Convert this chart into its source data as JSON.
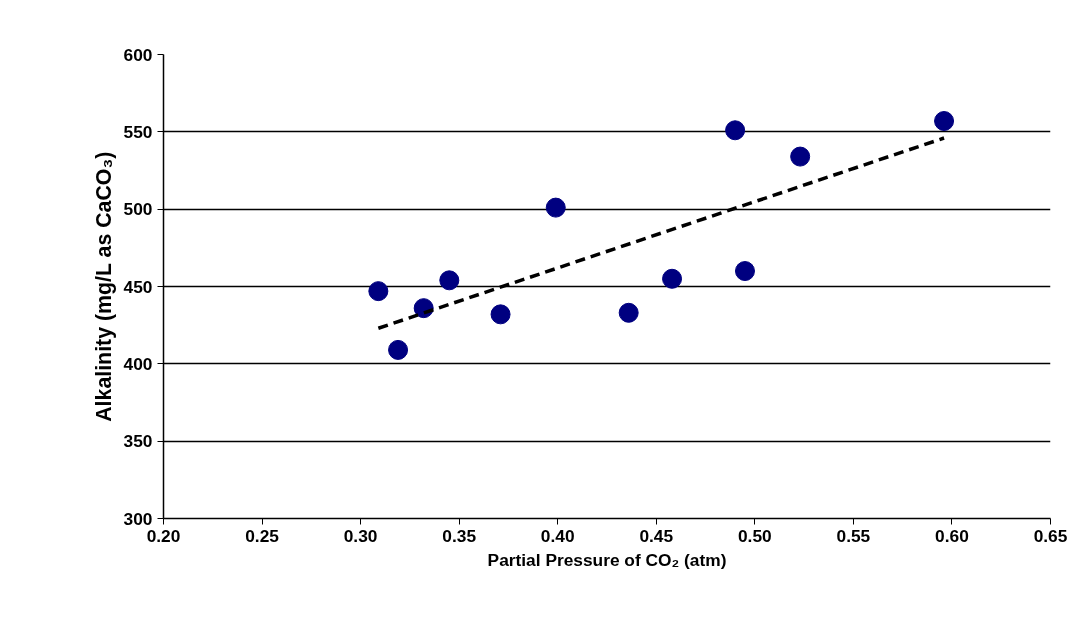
{
  "chart_data": {
    "type": "scatter",
    "xlabel": "Partial Pressure of CO₂ (atm)",
    "ylabel": "Alkalinity (mg/L as CaCO₃)",
    "xlim": [
      0.2,
      0.65
    ],
    "ylim": [
      300,
      600
    ],
    "xticks": [
      {
        "value": 0.2,
        "label": "0.20"
      },
      {
        "value": 0.25,
        "label": "0.25"
      },
      {
        "value": 0.3,
        "label": "0.30"
      },
      {
        "value": 0.35,
        "label": "0.35"
      },
      {
        "value": 0.4,
        "label": "0.40"
      },
      {
        "value": 0.45,
        "label": "0.45"
      },
      {
        "value": 0.5,
        "label": "0.50"
      },
      {
        "value": 0.55,
        "label": "0.55"
      },
      {
        "value": 0.6,
        "label": "0.60"
      },
      {
        "value": 0.65,
        "label": "0.65"
      }
    ],
    "yticks": [
      300,
      350,
      400,
      450,
      500,
      550,
      600
    ],
    "grid": "y",
    "series": [
      {
        "color": "#000080",
        "marker": "circle",
        "x": [
          0.309,
          0.319,
          0.332,
          0.345,
          0.371,
          0.399,
          0.436,
          0.458,
          0.49,
          0.495,
          0.523,
          0.596
        ],
        "values": [
          447,
          409,
          436,
          454,
          432,
          501,
          433,
          455,
          551,
          460,
          534,
          557
        ]
      },
      {
        "type": "line",
        "color": "#000000",
        "line_style": "dashed",
        "marker": "none",
        "x": [
          0.309,
          0.596
        ],
        "values": [
          423,
          546
        ]
      }
    ]
  }
}
